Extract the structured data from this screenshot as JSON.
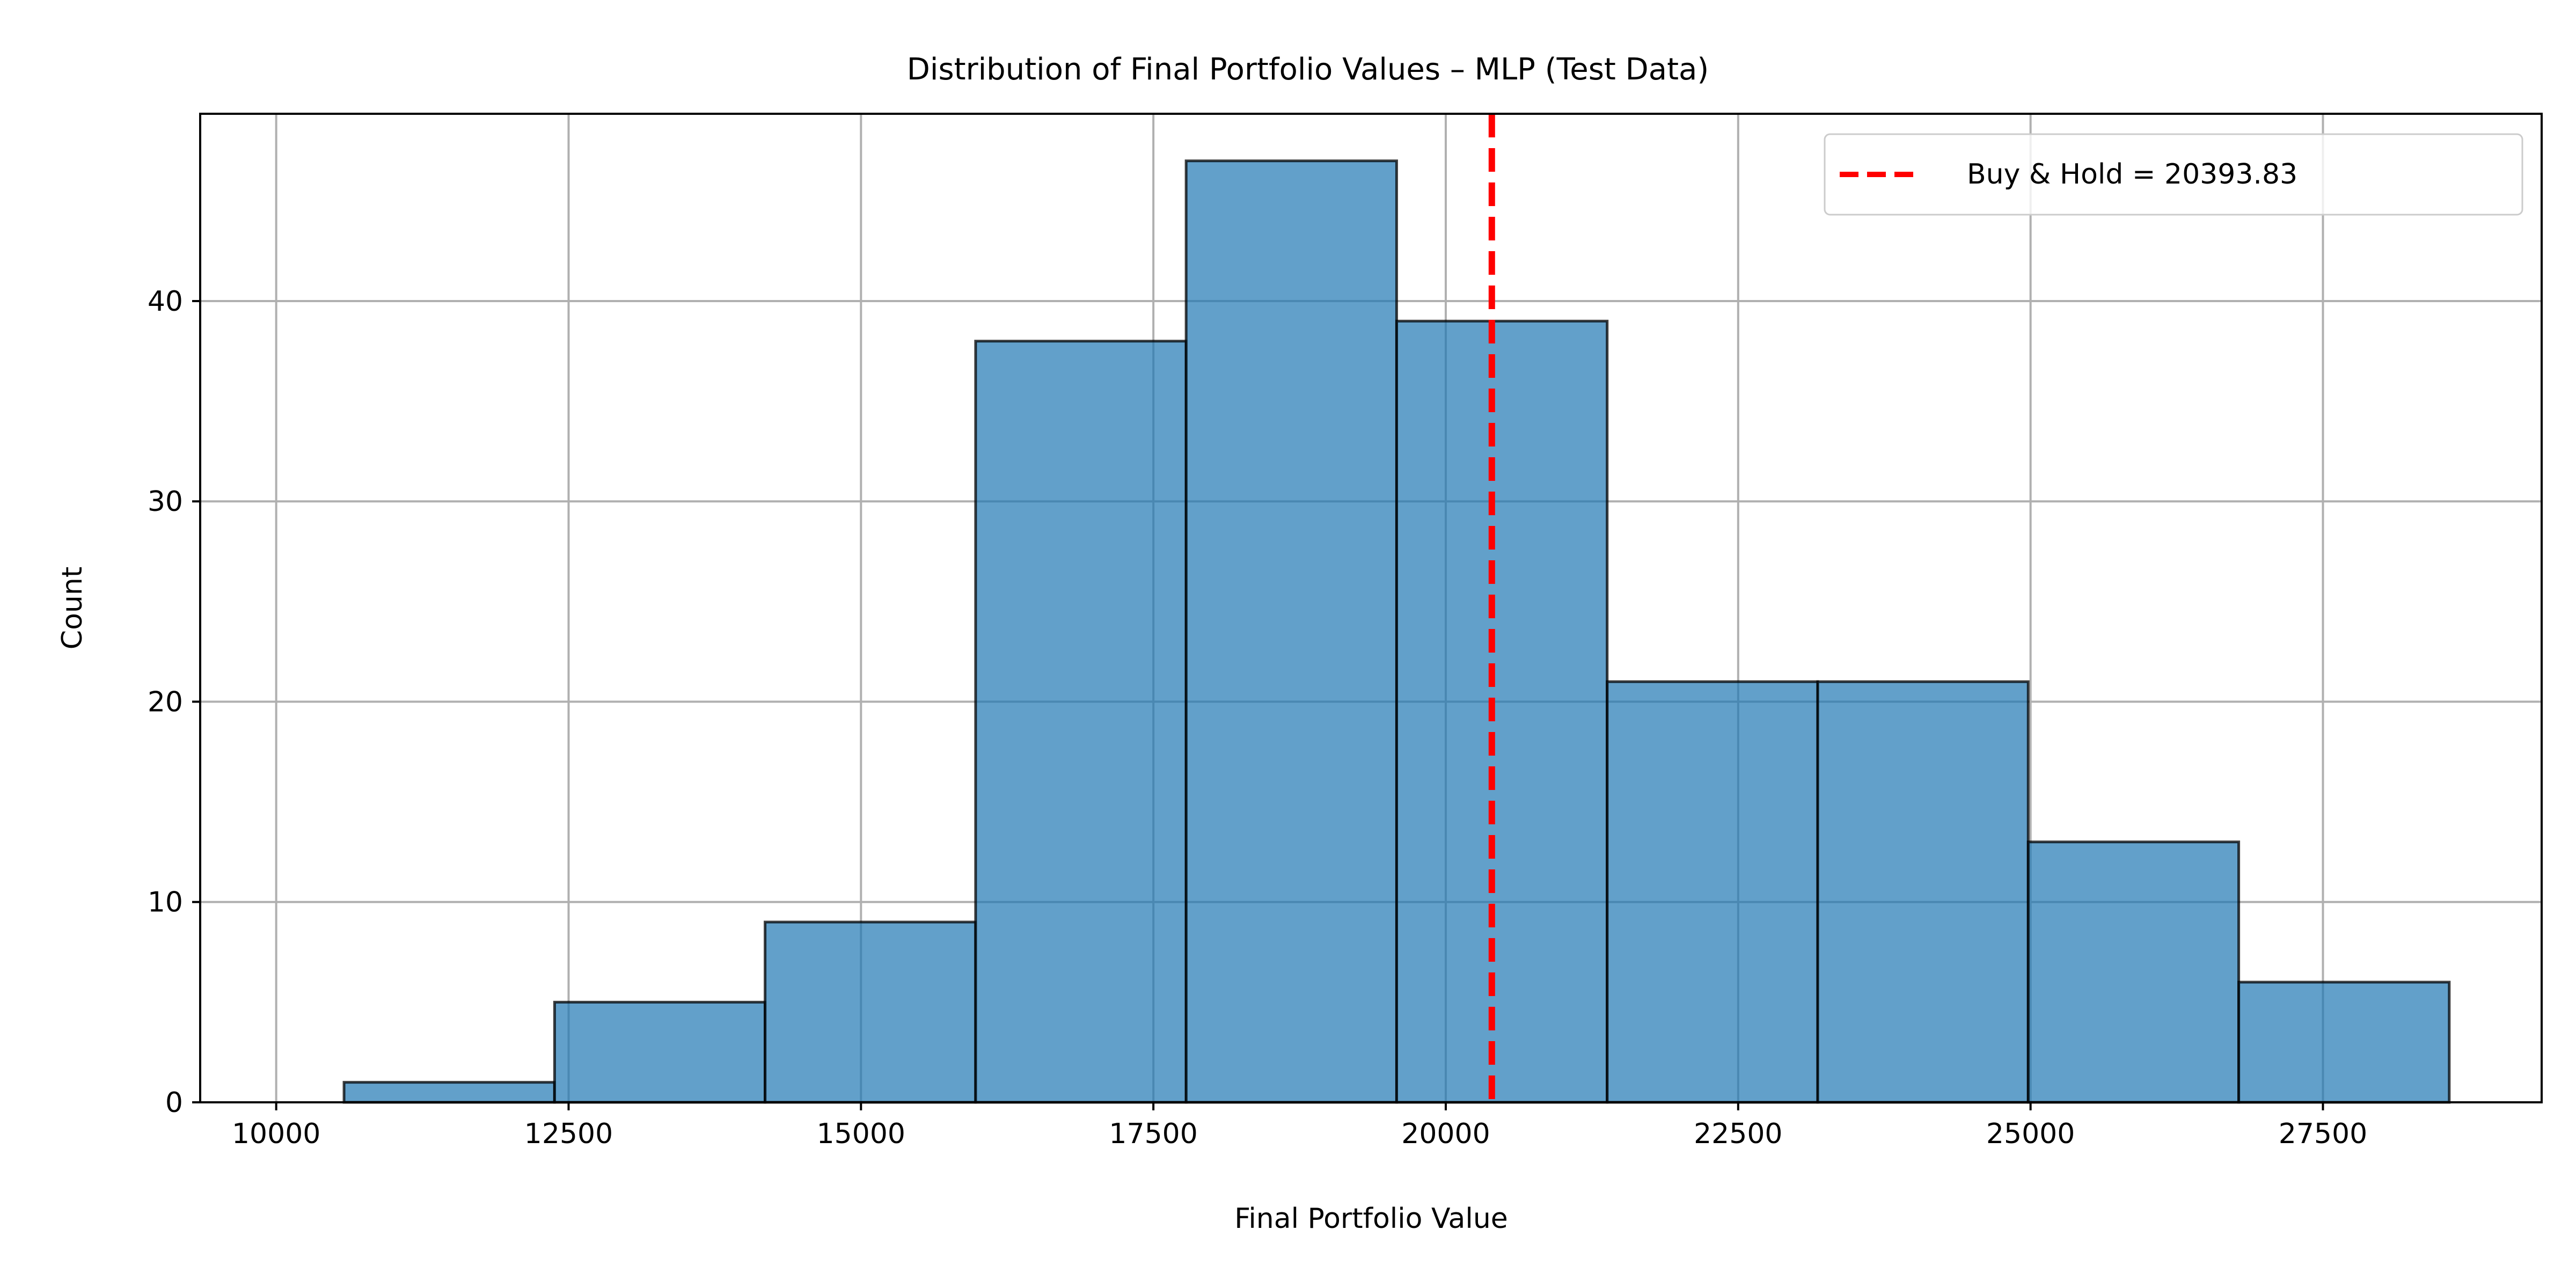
{
  "chart_data": {
    "type": "bar",
    "title": "Distribution of Final Portfolio Values – MLP (Test Data)",
    "xlabel": "Final Portfolio Value",
    "ylabel": "Count",
    "xlim": [
      9350,
      29370
    ],
    "ylim": [
      0,
      49.35
    ],
    "xticks": [
      10000,
      12500,
      15000,
      17500,
      20000,
      22500,
      25000,
      27500
    ],
    "xtick_labels": [
      "10000",
      "12500",
      "15000",
      "17500",
      "20000",
      "22500",
      "25000",
      "27500"
    ],
    "yticks": [
      0,
      10,
      20,
      30,
      40
    ],
    "ytick_labels": [
      "0",
      "10",
      "20",
      "30",
      "40"
    ],
    "grid": true,
    "legend_position": "top-right",
    "bins": [
      {
        "x0": 10580,
        "x1": 12380,
        "count": 1
      },
      {
        "x0": 12380,
        "x1": 14180,
        "count": 5
      },
      {
        "x0": 14180,
        "x1": 15980,
        "count": 9
      },
      {
        "x0": 15980,
        "x1": 17780,
        "count": 38
      },
      {
        "x0": 17780,
        "x1": 19580,
        "count": 47
      },
      {
        "x0": 19580,
        "x1": 21380,
        "count": 39
      },
      {
        "x0": 21380,
        "x1": 23180,
        "count": 21
      },
      {
        "x0": 23180,
        "x1": 24980,
        "count": 21
      },
      {
        "x0": 24980,
        "x1": 26780,
        "count": 13
      },
      {
        "x0": 26780,
        "x1": 28580,
        "count": 6
      }
    ],
    "reference_line": {
      "x": 20393.83,
      "label": "Buy & Hold = 20393.83",
      "color": "#ff0000",
      "style": "dashed"
    },
    "colors": {
      "bar_fill": "#1f77b4",
      "bar_fill_opacity": 0.7,
      "bar_edge": "#000000",
      "grid": "#b0b0b0"
    }
  }
}
